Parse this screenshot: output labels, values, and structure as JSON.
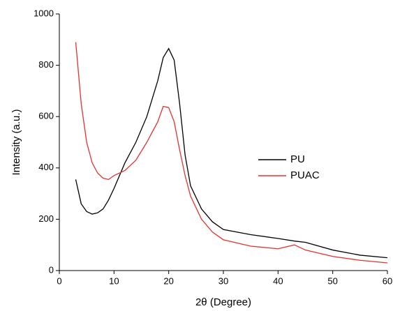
{
  "chart_data": {
    "type": "line",
    "x_label": "2θ (Degree)",
    "y_label": "Intensity (a.u.)",
    "x": [
      3,
      4,
      5,
      6,
      7,
      8,
      9,
      10,
      12,
      14,
      16,
      18,
      19,
      20,
      21,
      22,
      23,
      24,
      26,
      28,
      30,
      35,
      40,
      43,
      45,
      50,
      55,
      60
    ],
    "series": [
      {
        "name": "PU",
        "color": "#000000",
        "values": [
          355,
          260,
          230,
          220,
          225,
          240,
          275,
          320,
          420,
          500,
          600,
          740,
          830,
          865,
          820,
          650,
          450,
          330,
          240,
          190,
          160,
          140,
          125,
          115,
          110,
          80,
          60,
          50
        ]
      },
      {
        "name": "PUAC",
        "color": "#e8312b",
        "values": [
          890,
          650,
          500,
          420,
          380,
          360,
          355,
          370,
          390,
          430,
          500,
          580,
          640,
          635,
          580,
          470,
          370,
          290,
          200,
          150,
          120,
          95,
          85,
          100,
          80,
          55,
          40,
          30
        ]
      }
    ],
    "xlim": [
      0,
      60
    ],
    "xticks": [
      0,
      10,
      20,
      30,
      40,
      50,
      60
    ],
    "ylim": [
      0,
      1000
    ],
    "yticks": [
      0,
      200,
      400,
      600,
      800,
      1000
    ],
    "legend": "center-right"
  }
}
